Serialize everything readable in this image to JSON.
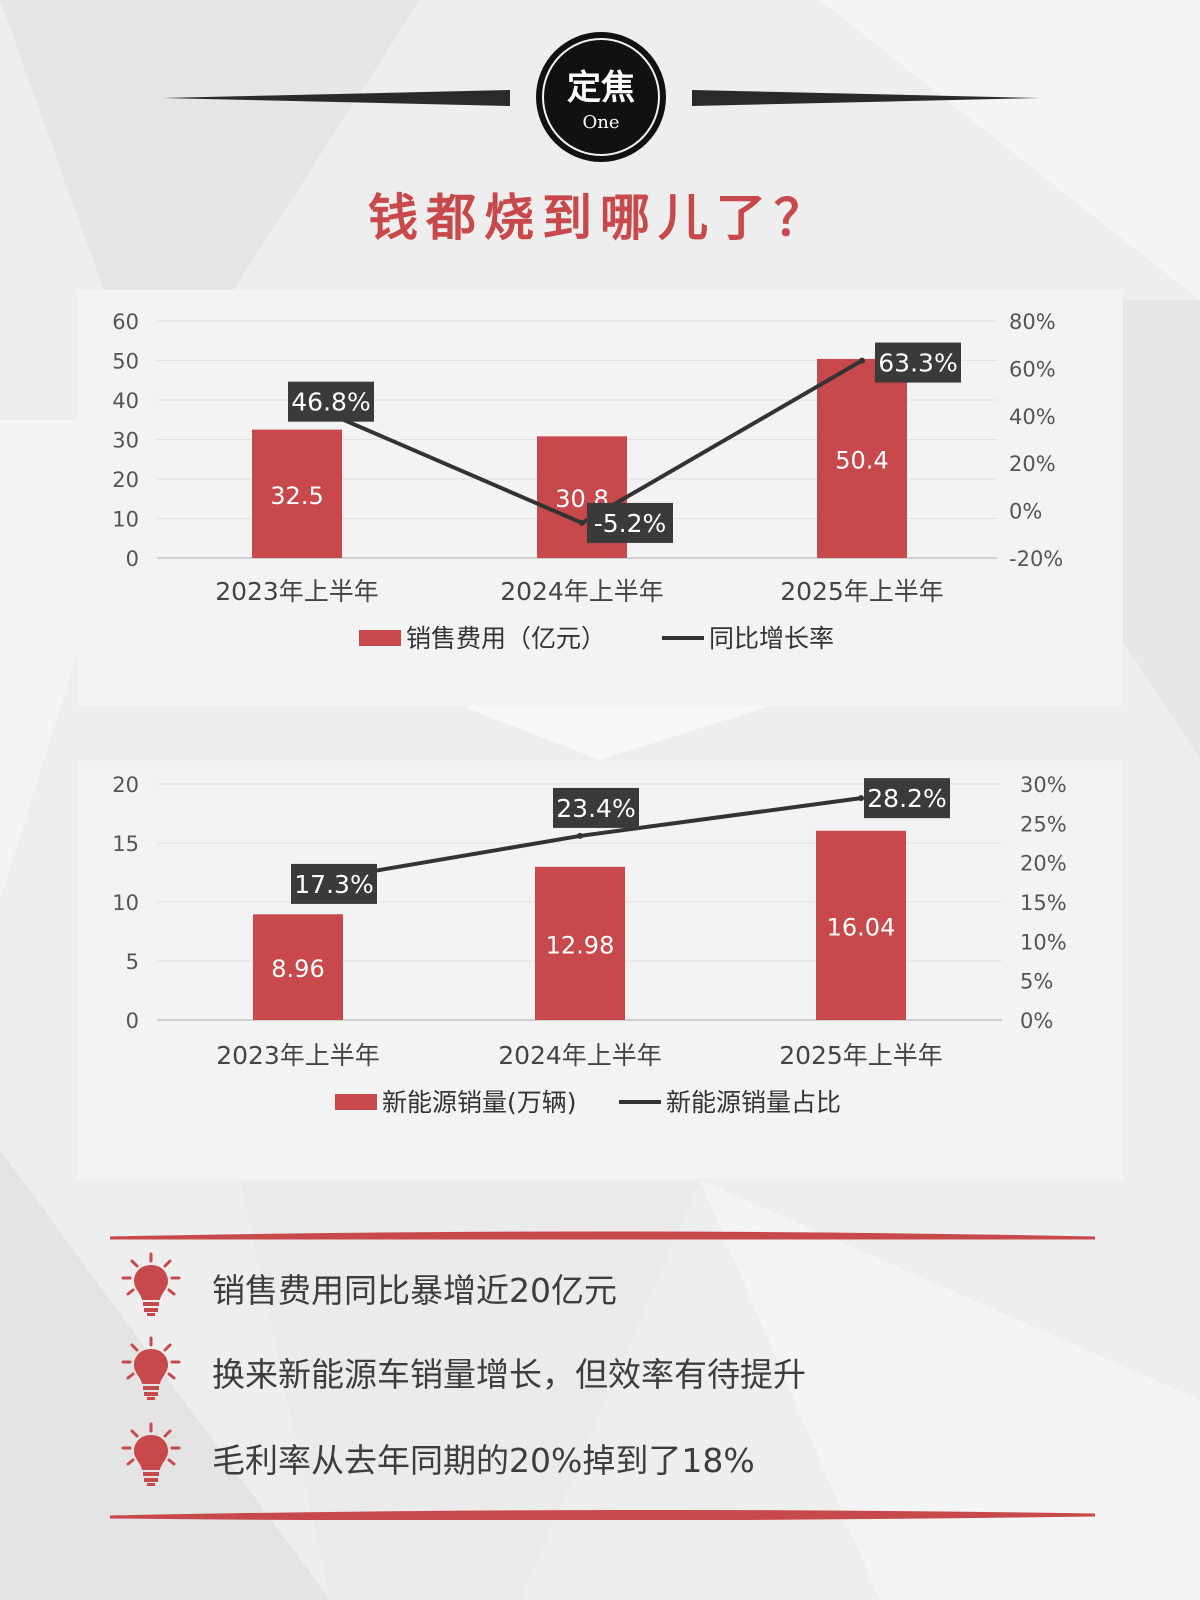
{
  "badge": {
    "title": "定焦",
    "subtitle": "One"
  },
  "headline": "钱都烧到哪儿了？",
  "charts": [
    {
      "type": "bar",
      "categories": [
        "2023年上半年",
        "2024年上半年",
        "2025年上半年"
      ],
      "bar_series": {
        "name": "销售费用（亿元）",
        "values": [
          32.5,
          30.8,
          50.4
        ],
        "color": "#c8494b"
      },
      "line_series": {
        "name": "同比增长率",
        "values": [
          46.8,
          -5.2,
          63.3
        ],
        "labels": [
          "46.8%",
          "-5.2%",
          "63.3%"
        ],
        "color": "#333333"
      },
      "y_left": {
        "min": 0,
        "max": 60,
        "ticks": [
          "0",
          "10",
          "20",
          "30",
          "40",
          "50",
          "60"
        ]
      },
      "y_right": {
        "min": -20,
        "max": 80,
        "ticks": [
          "-20%",
          "0%",
          "20%",
          "40%",
          "60%",
          "80%"
        ]
      },
      "grid": true,
      "legend_position": "bottom"
    },
    {
      "type": "bar",
      "categories": [
        "2023年上半年",
        "2024年上半年",
        "2025年上半年"
      ],
      "bar_series": {
        "name": "新能源销量(万辆)",
        "values": [
          8.96,
          12.98,
          16.04
        ],
        "color": "#c8494b"
      },
      "line_series": {
        "name": "新能源销量占比",
        "values": [
          17.3,
          23.4,
          28.2
        ],
        "labels": [
          "17.3%",
          "23.4%",
          "28.2%"
        ],
        "color": "#333333"
      },
      "y_left": {
        "min": 0,
        "max": 20,
        "ticks": [
          "0",
          "5",
          "10",
          "15",
          "20"
        ]
      },
      "y_right": {
        "min": 0,
        "max": 30,
        "ticks": [
          "0%",
          "5%",
          "10%",
          "15%",
          "20%",
          "25%",
          "30%"
        ]
      },
      "grid": true,
      "legend_position": "bottom"
    }
  ],
  "chart_data": [
    {
      "type": "bar",
      "categories": [
        "2023年上半年",
        "2024年上半年",
        "2025年上半年"
      ],
      "series": [
        {
          "name": "销售费用（亿元）",
          "type": "bar",
          "axis": "left",
          "values": [
            32.5,
            30.8,
            50.4
          ]
        },
        {
          "name": "同比增长率",
          "type": "line",
          "axis": "right",
          "values": [
            46.8,
            -5.2,
            63.3
          ]
        }
      ],
      "ylim_left": [
        0,
        60
      ],
      "ylim_right": [
        -20,
        80
      ],
      "grid": true,
      "legend": "bottom"
    },
    {
      "type": "bar",
      "categories": [
        "2023年上半年",
        "2024年上半年",
        "2025年上半年"
      ],
      "series": [
        {
          "name": "新能源销量(万辆)",
          "type": "bar",
          "axis": "left",
          "values": [
            8.96,
            12.98,
            16.04
          ]
        },
        {
          "name": "新能源销量占比",
          "type": "line",
          "axis": "right",
          "values": [
            17.3,
            23.4,
            28.2
          ]
        }
      ],
      "ylim_left": [
        0,
        20
      ],
      "ylim_right": [
        0,
        30
      ],
      "grid": true,
      "legend": "bottom"
    }
  ],
  "bullets": [
    {
      "icon": "lightbulb-icon",
      "text": "销售费用同比暴增近20亿元"
    },
    {
      "icon": "lightbulb-icon",
      "text": "换来新能源车销量增长，但效率有待提升"
    },
    {
      "icon": "lightbulb-icon",
      "text": "毛利率从去年同期的20%掉到了18%"
    }
  ],
  "colors": {
    "accent": "#c8494b",
    "dark": "#333333",
    "label_box": "#3a3a3a",
    "panel_bg": "#f3f3f3"
  }
}
